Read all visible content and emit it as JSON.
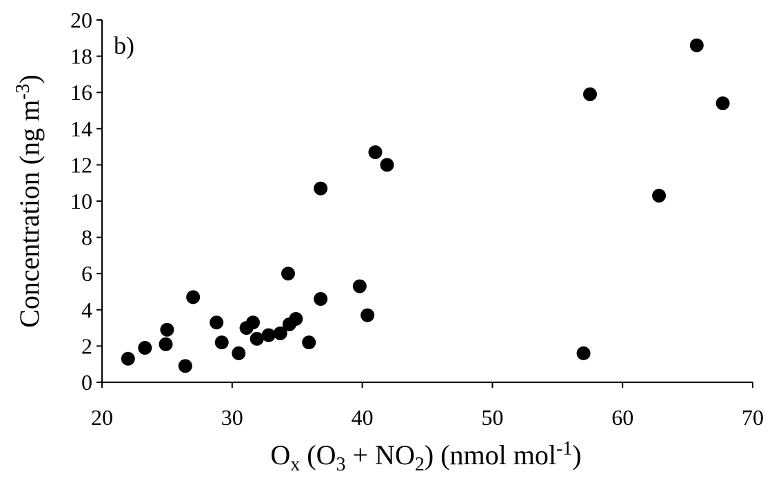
{
  "chart_data": {
    "type": "scatter",
    "panel_label": "b)",
    "xlabel": {
      "main": "O",
      "sub1": "x",
      "mid1": " (O",
      "sub2": "3",
      "mid2": " + NO",
      "sub3": "2",
      "mid3": ") (nmol mol",
      "sup": "-1",
      "end": ")"
    },
    "ylabel": {
      "main": "Concentration  (ng m",
      "sup": "-3",
      "end": ")"
    },
    "xlim": [
      20,
      70
    ],
    "ylim": [
      0,
      20
    ],
    "x_ticks": [
      "20",
      "30",
      "40",
      "50",
      "60",
      "70"
    ],
    "y_ticks": [
      "0",
      "2",
      "4",
      "6",
      "8",
      "10",
      "12",
      "14",
      "16",
      "18",
      "20"
    ],
    "grid": false,
    "legend": "none",
    "marker_color": "#000000",
    "points": [
      {
        "x": 22.0,
        "y": 1.3
      },
      {
        "x": 23.3,
        "y": 1.9
      },
      {
        "x": 24.9,
        "y": 2.1
      },
      {
        "x": 25.0,
        "y": 2.9
      },
      {
        "x": 26.4,
        "y": 0.9
      },
      {
        "x": 27.0,
        "y": 4.7
      },
      {
        "x": 28.8,
        "y": 3.3
      },
      {
        "x": 29.2,
        "y": 2.2
      },
      {
        "x": 30.5,
        "y": 1.6
      },
      {
        "x": 31.1,
        "y": 3.0
      },
      {
        "x": 31.6,
        "y": 3.3
      },
      {
        "x": 31.9,
        "y": 2.4
      },
      {
        "x": 32.8,
        "y": 2.6
      },
      {
        "x": 33.7,
        "y": 2.7
      },
      {
        "x": 34.4,
        "y": 3.2
      },
      {
        "x": 34.3,
        "y": 6.0
      },
      {
        "x": 34.9,
        "y": 3.5
      },
      {
        "x": 35.9,
        "y": 2.2
      },
      {
        "x": 36.8,
        "y": 4.6
      },
      {
        "x": 36.8,
        "y": 10.7
      },
      {
        "x": 39.8,
        "y": 5.3
      },
      {
        "x": 40.4,
        "y": 3.7
      },
      {
        "x": 41.0,
        "y": 12.7
      },
      {
        "x": 41.9,
        "y": 12.0
      },
      {
        "x": 57.0,
        "y": 1.6
      },
      {
        "x": 57.5,
        "y": 15.9
      },
      {
        "x": 62.8,
        "y": 10.3
      },
      {
        "x": 65.7,
        "y": 18.6
      },
      {
        "x": 67.7,
        "y": 15.4
      }
    ]
  }
}
